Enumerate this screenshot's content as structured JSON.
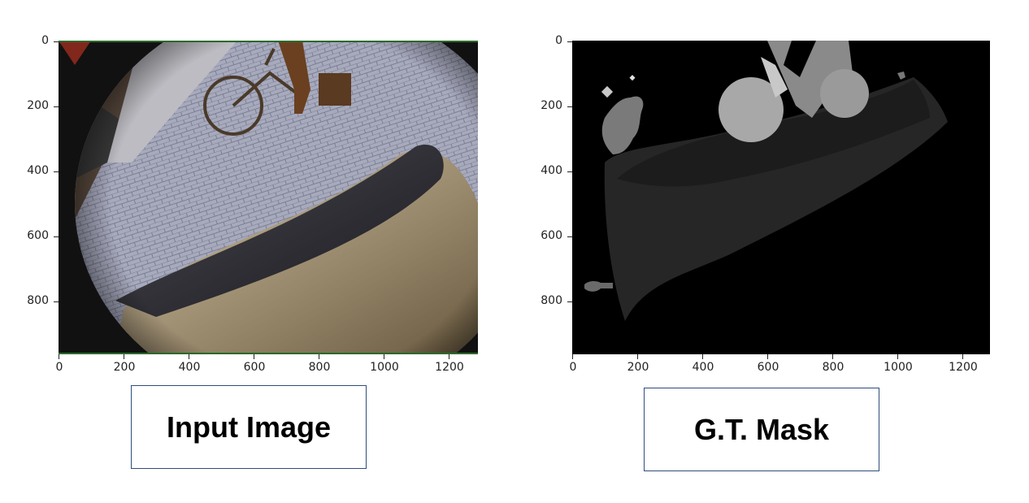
{
  "panels": [
    {
      "y_ticks": [
        "0",
        "200",
        "400",
        "600",
        "800"
      ],
      "x_ticks": [
        "0",
        "200",
        "400",
        "600",
        "800",
        "1000",
        "1200"
      ],
      "caption": "Input Image"
    },
    {
      "y_ticks": [
        "0",
        "200",
        "400",
        "600",
        "800"
      ],
      "x_ticks": [
        "0",
        "200",
        "400",
        "600",
        "800",
        "1000",
        "1200"
      ],
      "caption": "G.T. Mask"
    }
  ],
  "colors": {
    "caption_border": "#2f4d7a",
    "mask_background": "#000000",
    "road_gray": "#a9abc0",
    "car_body": "#3c3c42"
  },
  "image_content": {
    "left": "fisheye photo of paved street with cyclist and car roof",
    "right": "grayscale segmentation mask"
  }
}
